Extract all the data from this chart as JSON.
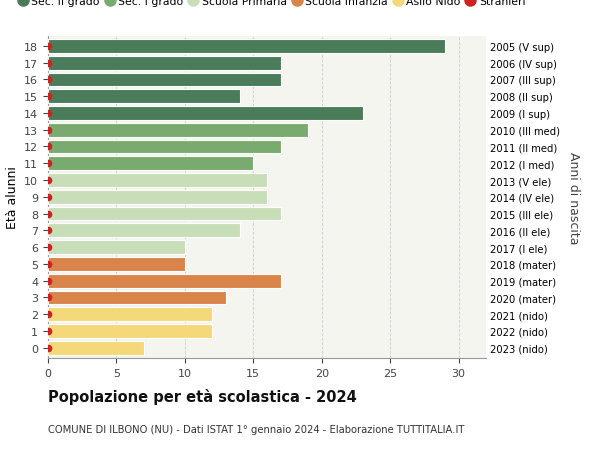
{
  "ages": [
    18,
    17,
    16,
    15,
    14,
    13,
    12,
    11,
    10,
    9,
    8,
    7,
    6,
    5,
    4,
    3,
    2,
    1,
    0
  ],
  "values": [
    29,
    17,
    17,
    14,
    23,
    19,
    17,
    15,
    16,
    16,
    17,
    14,
    10,
    10,
    17,
    13,
    12,
    12,
    7
  ],
  "right_labels": [
    "2005 (V sup)",
    "2006 (IV sup)",
    "2007 (III sup)",
    "2008 (II sup)",
    "2009 (I sup)",
    "2010 (III med)",
    "2011 (II med)",
    "2012 (I med)",
    "2013 (V ele)",
    "2014 (IV ele)",
    "2015 (III ele)",
    "2016 (II ele)",
    "2017 (I ele)",
    "2018 (mater)",
    "2019 (mater)",
    "2020 (mater)",
    "2021 (nido)",
    "2022 (nido)",
    "2023 (nido)"
  ],
  "bar_colors": [
    "#4a7c59",
    "#4a7c59",
    "#4a7c59",
    "#4a7c59",
    "#4a7c59",
    "#7aab6e",
    "#7aab6e",
    "#7aab6e",
    "#c8deb8",
    "#c8deb8",
    "#c8deb8",
    "#c8deb8",
    "#c8deb8",
    "#d9844a",
    "#d9844a",
    "#d9844a",
    "#f5d87a",
    "#f5d87a",
    "#f5d87a"
  ],
  "legend_labels": [
    "Sec. II grado",
    "Sec. I grado",
    "Scuola Primaria",
    "Scuola Infanzia",
    "Asilo Nido",
    "Stranieri"
  ],
  "legend_colors": [
    "#4a7c59",
    "#7aab6e",
    "#c8deb8",
    "#d9844a",
    "#f5d87a",
    "#cc2222"
  ],
  "dot_color": "#cc2222",
  "title": "Popolazione per età scolastica - 2024",
  "subtitle": "COMUNE DI ILBONO (NU) - Dati ISTAT 1° gennaio 2024 - Elaborazione TUTTITALIA.IT",
  "xlabel_left": "Età alunni",
  "xlabel_right": "Anni di nascita",
  "xlim": [
    0,
    32
  ],
  "xticks": [
    0,
    5,
    10,
    15,
    20,
    25,
    30
  ],
  "background_color": "#f5f5f0",
  "grid_color": "#cccccc"
}
